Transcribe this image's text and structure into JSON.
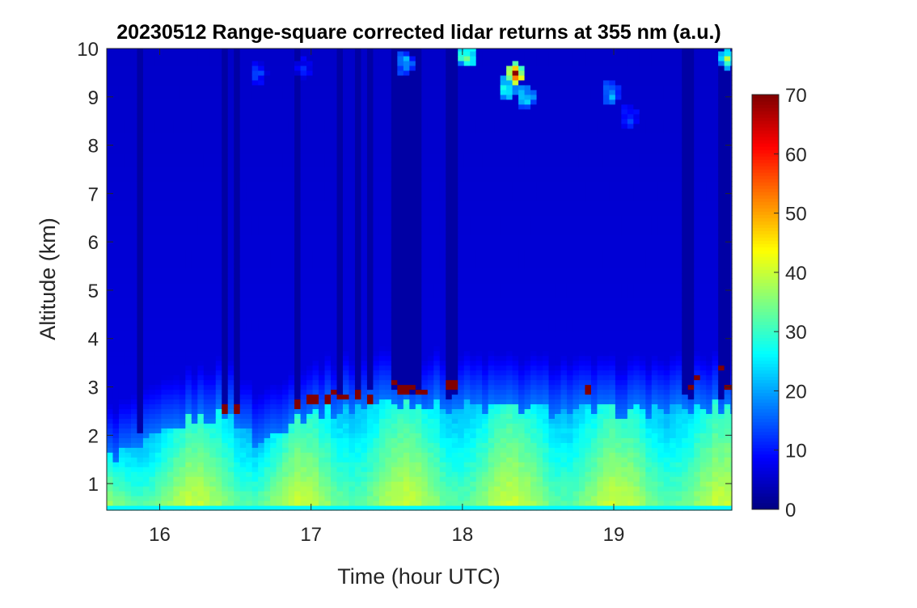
{
  "chart_data": {
    "type": "heatmap",
    "title": "20230512  Range-square corrected lidar returns at 355 nm (a.u.)",
    "xlabel": "Time (hour UTC)",
    "ylabel": "Altitude (km)",
    "xlim": [
      15.65,
      19.78
    ],
    "ylim": [
      0.45,
      10
    ],
    "xticks": [
      16,
      17,
      18,
      19
    ],
    "yticks": [
      1,
      2,
      3,
      4,
      5,
      6,
      7,
      8,
      9,
      10
    ],
    "colormap": "jet",
    "clim": [
      0,
      70
    ],
    "colorbar_ticks": [
      0,
      10,
      20,
      30,
      40,
      50,
      60,
      70
    ],
    "boundary_layer_top": [
      [
        15.65,
        1.5
      ],
      [
        15.9,
        1.8
      ],
      [
        16.2,
        2.3
      ],
      [
        16.45,
        2.5
      ],
      [
        16.65,
        1.8
      ],
      [
        16.9,
        2.4
      ],
      [
        17.5,
        2.7
      ],
      [
        18,
        2.6
      ],
      [
        19,
        2.5
      ],
      [
        19.78,
        2.6
      ]
    ],
    "dark_columns": [
      [
        15.83,
        15.87
      ],
      [
        16.41,
        16.43
      ],
      [
        16.49,
        16.51
      ],
      [
        16.89,
        16.93
      ],
      [
        17.07,
        17.1
      ],
      [
        17.16,
        17.22
      ],
      [
        17.29,
        17.31
      ],
      [
        17.37,
        17.4
      ],
      [
        17.52,
        17.72
      ],
      [
        17.9,
        17.96
      ],
      [
        19.45,
        19.53
      ],
      [
        19.67,
        19.78
      ]
    ],
    "cloud_returns": [
      [
        16.42,
        2.55
      ],
      [
        16.5,
        2.58
      ],
      [
        16.9,
        2.65
      ],
      [
        17.0,
        2.78
      ],
      [
        17.1,
        2.75
      ],
      [
        17.14,
        2.9
      ],
      [
        17.2,
        2.8
      ],
      [
        17.3,
        2.85
      ],
      [
        17.38,
        2.72
      ],
      [
        17.54,
        3.1
      ],
      [
        17.6,
        2.95
      ],
      [
        17.67,
        3.0
      ],
      [
        17.72,
        2.9
      ],
      [
        17.93,
        3.05
      ],
      [
        18.82,
        2.97
      ],
      [
        19.5,
        3.0
      ],
      [
        19.55,
        3.2
      ],
      [
        19.7,
        3.4
      ],
      [
        19.76,
        3.0
      ]
    ],
    "cirrus": [
      [
        18.35,
        9.5,
        70
      ],
      [
        18.3,
        9.2,
        40
      ],
      [
        18.42,
        9.0,
        35
      ],
      [
        18.03,
        9.85,
        50
      ],
      [
        17.62,
        9.7,
        30
      ],
      [
        19.75,
        9.8,
        40
      ],
      [
        18.98,
        9.1,
        30
      ],
      [
        19.1,
        8.6,
        18
      ],
      [
        16.65,
        9.5,
        18
      ],
      [
        16.95,
        9.6,
        14
      ]
    ]
  }
}
